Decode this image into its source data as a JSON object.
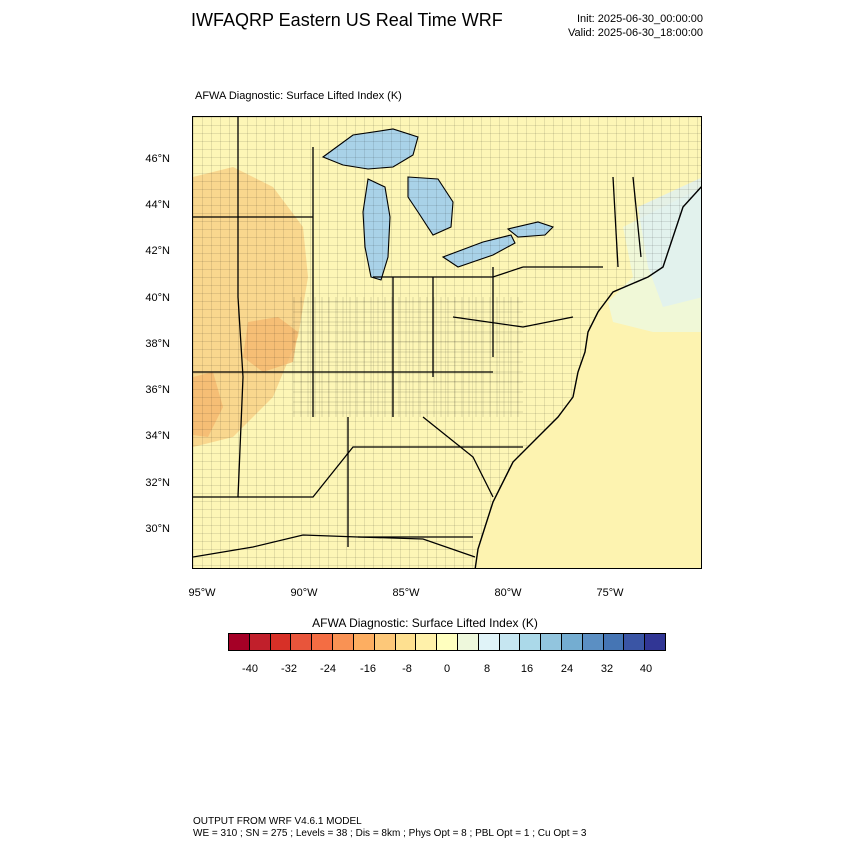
{
  "header": {
    "title": "IWFAQRP Eastern US Real Time WRF",
    "init": "Init: 2025-06-30_00:00:00",
    "valid": "Valid: 2025-06-30_18:00:00"
  },
  "panel": {
    "title": "AFWA Diagnostic: Surface Lifted Index   (K)"
  },
  "map": {
    "lat_labels": [
      "46°N",
      "44°N",
      "42°N",
      "40°N",
      "38°N",
      "36°N",
      "34°N",
      "32°N",
      "30°N"
    ],
    "lon_labels": [
      "95°W",
      "90°W",
      "85°W",
      "80°W",
      "75°W"
    ],
    "colors": {
      "land": "#fdf6b6",
      "ocean": "#fdf3b0",
      "lake": "#a9d2e8",
      "lake_light": "#d4eaf3",
      "warm": "#f8d48a",
      "warmer": "#f4b56c",
      "cool": "#dff0f3"
    }
  },
  "colorbar": {
    "title": "AFWA Diagnostic: Surface Lifted Index  (K)",
    "ticks": [
      "-40",
      "-32",
      "-24",
      "-16",
      "-8",
      "0",
      "8",
      "16",
      "24",
      "32",
      "40"
    ],
    "colors": [
      "#a50026",
      "#c11f2b",
      "#d73027",
      "#e8553b",
      "#f46d43",
      "#f99254",
      "#fdae61",
      "#fdc879",
      "#fee090",
      "#fff1aa",
      "#ffffbf",
      "#eef8dc",
      "#e0f3f8",
      "#c6e6f1",
      "#abd9e9",
      "#92c5de",
      "#74add1",
      "#5b8fc3",
      "#4575b4",
      "#3a55a5",
      "#313695"
    ]
  },
  "footer": {
    "line1": "OUTPUT FROM WRF V4.6.1 MODEL",
    "line2": "WE = 310 ; SN = 275 ; Levels = 38 ; Dis = 8km ; Phys Opt = 8 ; PBL Opt = 1 ; Cu Opt = 3"
  }
}
